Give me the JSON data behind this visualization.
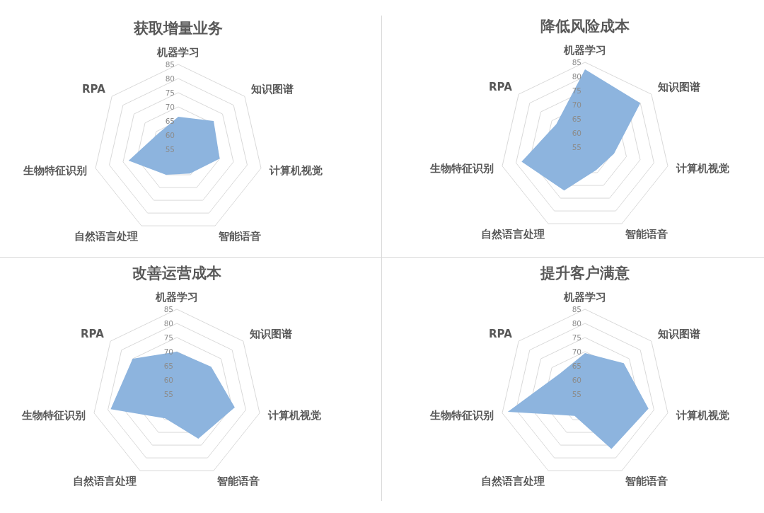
{
  "chart_data": [
    {
      "type": "radar",
      "title": "获取增量业务",
      "categories": [
        "机器学习",
        "知识图谱",
        "计算机视觉",
        "智能语音",
        "自然语言处理",
        "生物特征识别",
        "RPA"
      ],
      "series": [
        {
          "color": "#8db4de",
          "values": [
            66.5,
            71,
            70,
            64.5,
            65,
            73,
            64
          ]
        }
      ],
      "ylim": [
        55,
        85
      ],
      "yticks": [
        55,
        60,
        65,
        70,
        75,
        80,
        85
      ],
      "grid": "y"
    },
    {
      "type": "radar",
      "title": "降低风险成本",
      "categories": [
        "机器学习",
        "知识图谱",
        "计算机视觉",
        "智能语音",
        "自然语言处理",
        "生物特征识别",
        "RPA"
      ],
      "series": [
        {
          "color": "#8db4de",
          "values": [
            82.5,
            80,
            65.5,
            64,
            72,
            78,
            68
          ]
        }
      ],
      "ylim": [
        55,
        85
      ],
      "yticks": [
        55,
        60,
        65,
        70,
        75,
        80,
        85
      ],
      "grid": "y"
    },
    {
      "type": "radar",
      "title": "改善运营成本",
      "categories": [
        "机器学习",
        "知识图谱",
        "计算机视觉",
        "智能语音",
        "自然语言处理",
        "生物特征识别",
        "RPA"
      ],
      "series": [
        {
          "color": "#8db4de",
          "values": [
            70,
            70.5,
            76,
            72.5,
            64.5,
            79,
            75
          ]
        }
      ],
      "ylim": [
        55,
        85
      ],
      "yticks": [
        55,
        60,
        65,
        70,
        75,
        80,
        85
      ],
      "grid": "y"
    },
    {
      "type": "radar",
      "title": "提升客户满意",
      "categories": [
        "机器学习",
        "知识图谱",
        "计算机视觉",
        "智能语音",
        "自然语言处理",
        "生物特征识别",
        "RPA"
      ],
      "series": [
        {
          "color": "#8db4de",
          "values": [
            69.5,
            72.5,
            78,
            76.5,
            63.5,
            83,
            66.5
          ]
        }
      ],
      "ylim": [
        55,
        85
      ],
      "yticks": [
        55,
        60,
        65,
        70,
        75,
        80,
        85
      ],
      "grid": "y"
    }
  ]
}
